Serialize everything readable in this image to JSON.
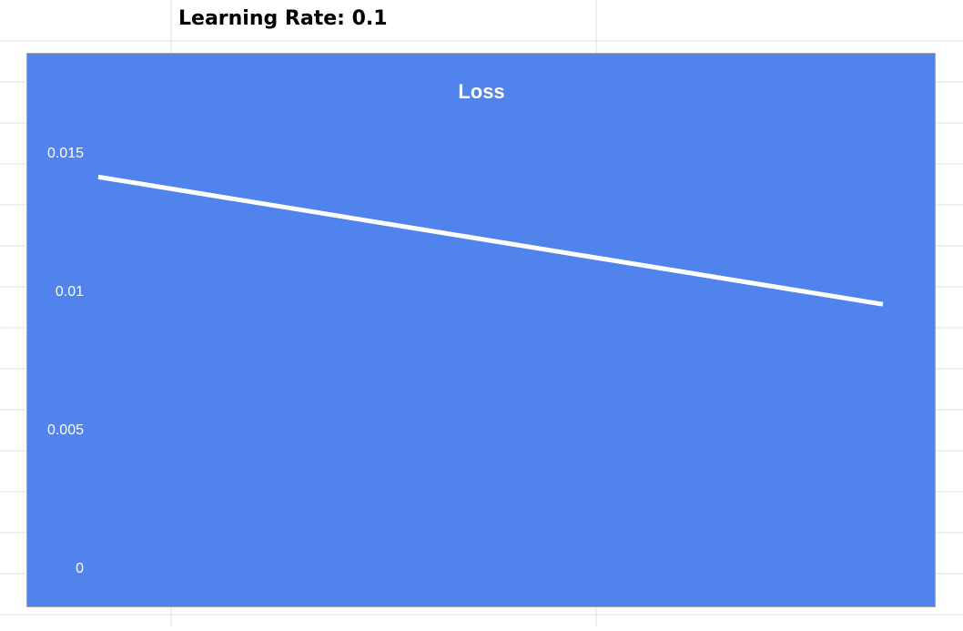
{
  "sheet": {
    "cell_text": "Learning Rate: 0.1"
  },
  "colors": {
    "chart_background": "#5083ec",
    "line": "#ffffff",
    "gridline": "#e0e0e0",
    "text": "#ffffff"
  },
  "chart_data": {
    "type": "line",
    "title": "Loss",
    "xlabel": "",
    "ylabel": "",
    "ylim": [
      0,
      0.015
    ],
    "yticks": [
      "0",
      "0.005",
      "0.01",
      "0.015"
    ],
    "grid": false,
    "legend": "none",
    "x": [
      0,
      1
    ],
    "series": [
      {
        "values": [
          0.0142,
          0.0096
        ]
      }
    ]
  }
}
